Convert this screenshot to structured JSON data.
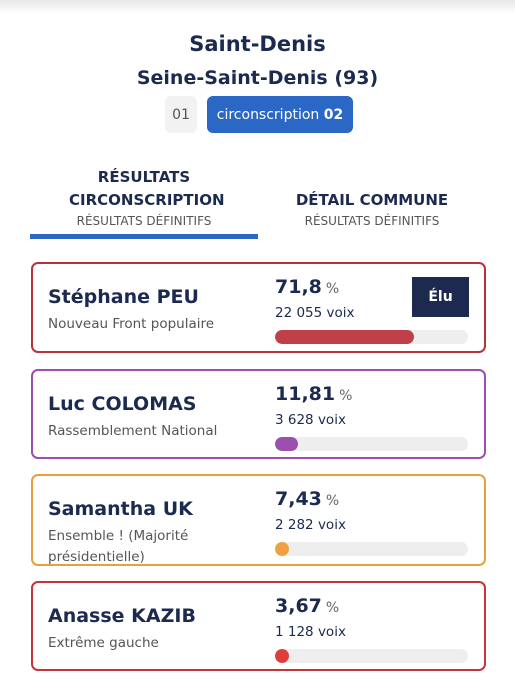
{
  "header": {
    "title": "Saint-Denis",
    "subtitle": "Seine-Saint-Denis (93)",
    "buttons": [
      {
        "label": "01"
      },
      {
        "label": "circonscription",
        "number": "02"
      }
    ]
  },
  "tabs": [
    {
      "title": "RÉSULTATS CIRCONSCRIPTION",
      "subtitle": "RÉSULTATS DÉFINITIFS"
    },
    {
      "title": "DÉTAIL COMMUNE",
      "subtitle": "RÉSULTATS DÉFINITIFS"
    }
  ],
  "candidates": [
    {
      "name": "Stéphane PEU",
      "party": "Nouveau Front populaire",
      "percent": "71,8",
      "unit": "%",
      "votes": "22 055 voix",
      "badge": "Élu",
      "color": "#c0404a",
      "border": "#b8323c"
    },
    {
      "name": "Luc COLOMAS",
      "party": "Rassemblement National",
      "percent": "11,81",
      "unit": "%",
      "votes": "3 628 voix",
      "color": "#9b4fae",
      "border": "#9b4fae"
    },
    {
      "name": "Samantha UK",
      "party": "Ensemble ! (Majorité présidentielle)",
      "percent": "7,43",
      "unit": "%",
      "votes": "2 282 voix",
      "color": "#f0a040",
      "border": "#e8a13a"
    },
    {
      "name": "Anasse KAZIB",
      "party": "Extrême gauche",
      "percent": "3,67",
      "unit": "%",
      "votes": "1 128 voix",
      "color": "#e03c3c",
      "border": "#c8323a"
    }
  ]
}
